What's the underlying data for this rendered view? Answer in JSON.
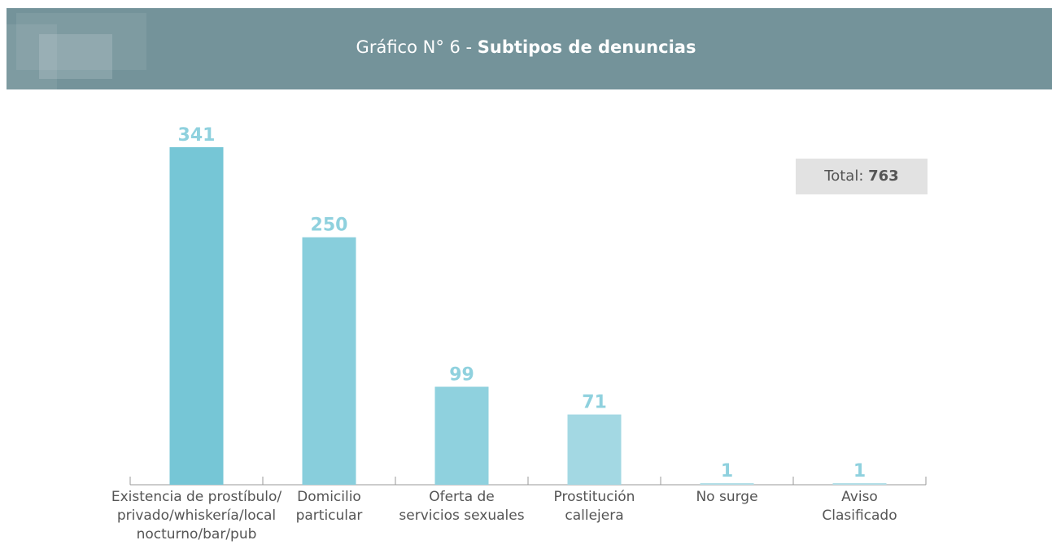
{
  "chart_data": {
    "type": "bar",
    "title": {
      "prefix": "Gráfico N° 6 - ",
      "main": "Subtipos de denuncias"
    },
    "total": {
      "label": "Total:",
      "value": 763
    },
    "categories": [
      "Existencia de prostíbulo/\nprivado/whiskería/local\nnocturno/bar/pub",
      "Domicilio\nparticular",
      "Oferta de\nservicios sexuales",
      "Prostitución\ncallejera",
      "No surge",
      "Aviso\nClasificado"
    ],
    "values": [
      341,
      250,
      99,
      71,
      1,
      1
    ],
    "colors": [
      "#76c6d6",
      "#88cedc",
      "#8fd1de",
      "#a3d8e3",
      "#b4dfe8",
      "#b4dfe8"
    ],
    "label_color": "#8fd1de"
  }
}
